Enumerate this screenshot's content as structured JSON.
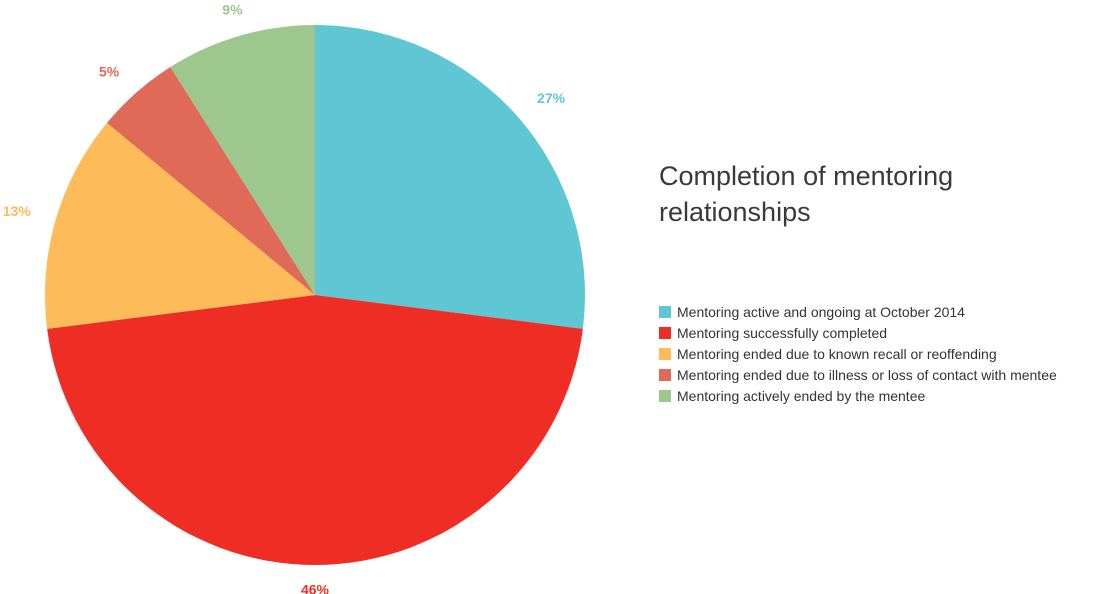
{
  "chart_data": {
    "type": "pie",
    "title": "Completion of mentoring relationships",
    "legend_position": "right",
    "slices": [
      {
        "label": "Mentoring active and ongoing at October 2014",
        "value": 27,
        "value_label": "27%",
        "color": "#5fc7d3"
      },
      {
        "label": "Mentoring successfully completed",
        "value": 46,
        "value_label": "46%",
        "color": "#ee2e24"
      },
      {
        "label": "Mentoring ended due to known recall or reoffending",
        "value": 13,
        "value_label": "13%",
        "color": "#fdbc59"
      },
      {
        "label": "Mentoring ended due to illness or loss of contact with mentee",
        "value": 5,
        "value_label": "5%",
        "color": "#e06a58"
      },
      {
        "label": "Mentoring actively ended by the mentee",
        "value": 9,
        "value_label": "9%",
        "color": "#9dc78c"
      }
    ]
  }
}
